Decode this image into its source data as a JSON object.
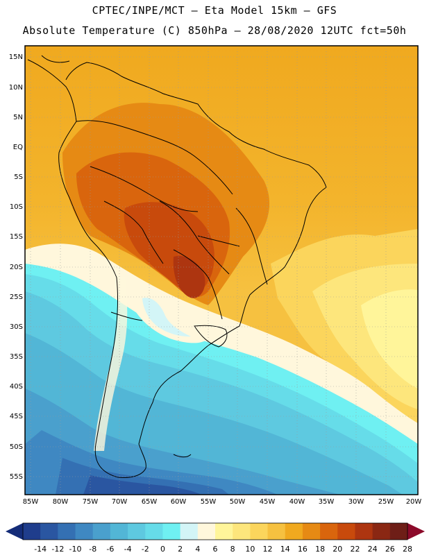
{
  "header": {
    "line1": "CPTEC/INPE/MCT –  Eta Model 15km – GFS",
    "line2": "Absolute Temperature (C) 850hPa – 28/08/2020 12UTC fct=50h"
  },
  "axes": {
    "lat_labels": [
      "15N",
      "10N",
      "5N",
      "EQ",
      "5S",
      "10S",
      "15S",
      "20S",
      "25S",
      "30S",
      "35S",
      "40S",
      "45S",
      "50S",
      "55S"
    ],
    "lon_labels": [
      "85W",
      "80W",
      "75W",
      "70W",
      "65W",
      "60W",
      "55W",
      "50W",
      "45W",
      "40W",
      "35W",
      "30W",
      "25W",
      "20W"
    ]
  },
  "colorbar": {
    "labels": [
      "-14",
      "-12",
      "-10",
      "-8",
      "-6",
      "-4",
      "-2",
      "0",
      "2",
      "4",
      "6",
      "8",
      "10",
      "12",
      "14",
      "16",
      "18",
      "20",
      "22",
      "24",
      "26",
      "28"
    ],
    "colors": [
      "#1f3d8c",
      "#2a56a1",
      "#3470b3",
      "#3f88c2",
      "#4aa0cd",
      "#52b6d6",
      "#5ec9e0",
      "#66dce9",
      "#6ff0f2",
      "#d3f5f7",
      "#fff7dc",
      "#fff59a",
      "#fde67c",
      "#fbd55c",
      "#f6c140",
      "#f0a91f",
      "#e68a14",
      "#d9650d",
      "#c84a0c",
      "#ad3510",
      "#8a2713",
      "#6e1e17"
    ],
    "under_color": "#142c78",
    "over_color": "#8c0a2a"
  }
}
